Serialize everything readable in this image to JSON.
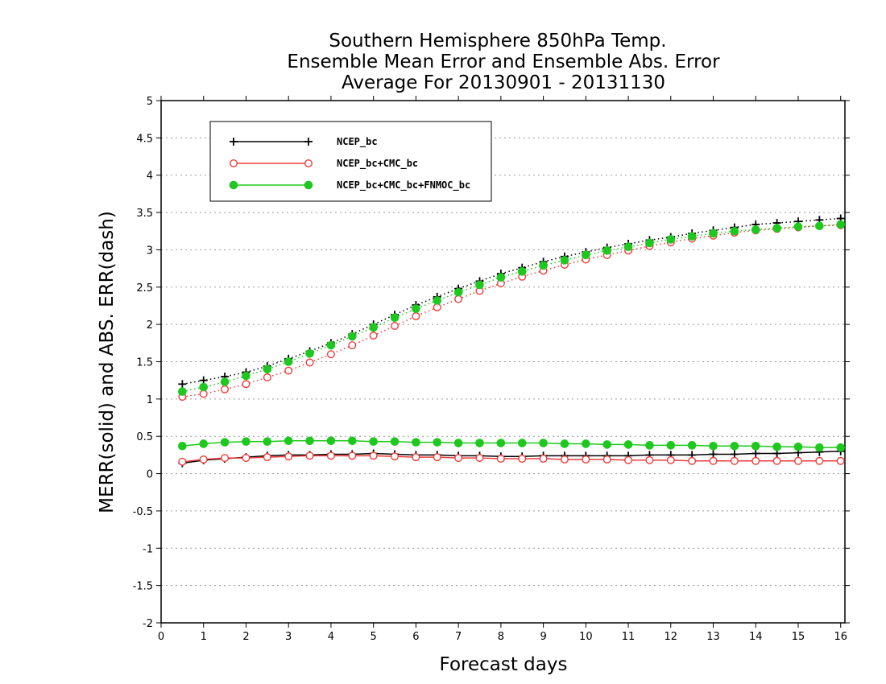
{
  "chart_data": {
    "type": "line",
    "title_lines": [
      "Southern Hemisphere 850hPa Temp.",
      "Ensemble Mean Error and Ensemble Abs. Error",
      "Average For 20130901 - 20131130"
    ],
    "xlabel": "Forecast days",
    "ylabel": "MERR(solid) and ABS. ERR(dash)",
    "xlim": [
      0,
      16.1
    ],
    "ylim": [
      -2,
      5
    ],
    "xticks": [
      0,
      1,
      2,
      3,
      4,
      5,
      6,
      7,
      8,
      9,
      10,
      11,
      12,
      13,
      14,
      15,
      16
    ],
    "yticks": [
      -2,
      -1.5,
      -1,
      -0.5,
      0,
      0.5,
      1,
      1.5,
      2,
      2.5,
      3,
      3.5,
      4,
      4.5,
      5
    ],
    "ytick_labels": [
      "-2",
      "-1.5",
      "-1",
      "-0.5",
      "0",
      "0.5",
      "1",
      "1.5",
      "2",
      "2.5",
      "3",
      "3.5",
      "4",
      "4.5",
      "5"
    ],
    "grid": true,
    "legend_position": "top-left",
    "x": [
      0.5,
      1,
      1.5,
      2,
      2.5,
      3,
      3.5,
      4,
      4.5,
      5,
      5.5,
      6,
      6.5,
      7,
      7.5,
      8,
      8.5,
      9,
      9.5,
      10,
      10.5,
      11,
      11.5,
      12,
      12.5,
      13,
      13.5,
      14,
      14.5,
      15,
      15.5,
      16
    ],
    "series": [
      {
        "name": "NCEP_bc",
        "color": "#000000",
        "marker": "plus",
        "merr": [
          0.14,
          0.18,
          0.2,
          0.22,
          0.24,
          0.25,
          0.25,
          0.26,
          0.26,
          0.27,
          0.26,
          0.25,
          0.25,
          0.24,
          0.24,
          0.23,
          0.23,
          0.24,
          0.24,
          0.24,
          0.24,
          0.24,
          0.25,
          0.25,
          0.25,
          0.26,
          0.26,
          0.27,
          0.27,
          0.28,
          0.29,
          0.3
        ],
        "abs_err": [
          1.2,
          1.25,
          1.3,
          1.36,
          1.44,
          1.54,
          1.64,
          1.75,
          1.87,
          2.0,
          2.13,
          2.26,
          2.37,
          2.48,
          2.58,
          2.68,
          2.76,
          2.84,
          2.91,
          2.97,
          3.03,
          3.08,
          3.13,
          3.17,
          3.22,
          3.26,
          3.3,
          3.34,
          3.36,
          3.38,
          3.4,
          3.42
        ]
      },
      {
        "name": "NCEP_bc+CMC_bc",
        "color": "#f03c3c",
        "marker": "open-circle",
        "merr": [
          0.16,
          0.19,
          0.21,
          0.21,
          0.22,
          0.23,
          0.24,
          0.24,
          0.24,
          0.24,
          0.23,
          0.22,
          0.22,
          0.21,
          0.21,
          0.2,
          0.2,
          0.2,
          0.19,
          0.19,
          0.19,
          0.18,
          0.18,
          0.18,
          0.17,
          0.17,
          0.17,
          0.17,
          0.17,
          0.17,
          0.17,
          0.17
        ],
        "abs_err": [
          1.03,
          1.07,
          1.13,
          1.2,
          1.29,
          1.38,
          1.49,
          1.6,
          1.72,
          1.85,
          1.98,
          2.11,
          2.23,
          2.34,
          2.45,
          2.55,
          2.64,
          2.72,
          2.8,
          2.87,
          2.93,
          2.99,
          3.05,
          3.1,
          3.15,
          3.19,
          3.23,
          3.26,
          3.28,
          3.3,
          3.32,
          3.33
        ]
      },
      {
        "name": "NCEP_bc+CMC_bc+FNMOC_bc",
        "color": "#1ec81e",
        "marker": "filled-circle",
        "merr": [
          0.37,
          0.4,
          0.42,
          0.43,
          0.43,
          0.44,
          0.44,
          0.44,
          0.44,
          0.43,
          0.43,
          0.42,
          0.42,
          0.41,
          0.41,
          0.41,
          0.41,
          0.41,
          0.4,
          0.4,
          0.39,
          0.39,
          0.38,
          0.38,
          0.38,
          0.37,
          0.37,
          0.37,
          0.36,
          0.36,
          0.35,
          0.35
        ],
        "abs_err": [
          1.1,
          1.16,
          1.23,
          1.31,
          1.4,
          1.5,
          1.61,
          1.72,
          1.84,
          1.96,
          2.09,
          2.21,
          2.32,
          2.43,
          2.53,
          2.63,
          2.71,
          2.79,
          2.86,
          2.93,
          2.99,
          3.04,
          3.09,
          3.14,
          3.18,
          3.22,
          3.25,
          3.27,
          3.29,
          3.31,
          3.32,
          3.34
        ]
      }
    ]
  }
}
